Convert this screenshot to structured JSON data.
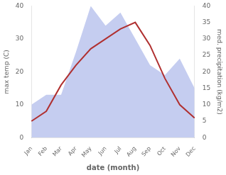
{
  "chart_data": {
    "type": "line",
    "xlabel": "date (month)",
    "ylabel": "max temp (C)",
    "y2label": "med. precipitation (kg/m2)",
    "categories": [
      "Jan",
      "Feb",
      "Mar",
      "Apr",
      "May",
      "Jun",
      "Jul",
      "Aug",
      "Sep",
      "Oct",
      "Nov",
      "Dec"
    ],
    "series": [
      {
        "type": "area",
        "axis": "y2",
        "color": "#c5cdf0",
        "values": [
          10,
          13,
          13,
          26,
          40,
          34,
          38,
          30,
          22,
          19,
          24,
          15
        ]
      },
      {
        "type": "line",
        "color": "#b03030",
        "values": [
          5,
          8,
          16,
          22,
          27,
          30,
          33,
          35,
          28,
          18,
          10,
          6
        ]
      }
    ],
    "ylim": [
      0,
      40
    ],
    "yticks": [
      0,
      10,
      20,
      30,
      40
    ],
    "y2lim": [
      0,
      40
    ],
    "y2ticks": [
      0,
      5,
      10,
      15,
      20,
      25,
      30,
      35,
      40
    ],
    "grid": false
  }
}
